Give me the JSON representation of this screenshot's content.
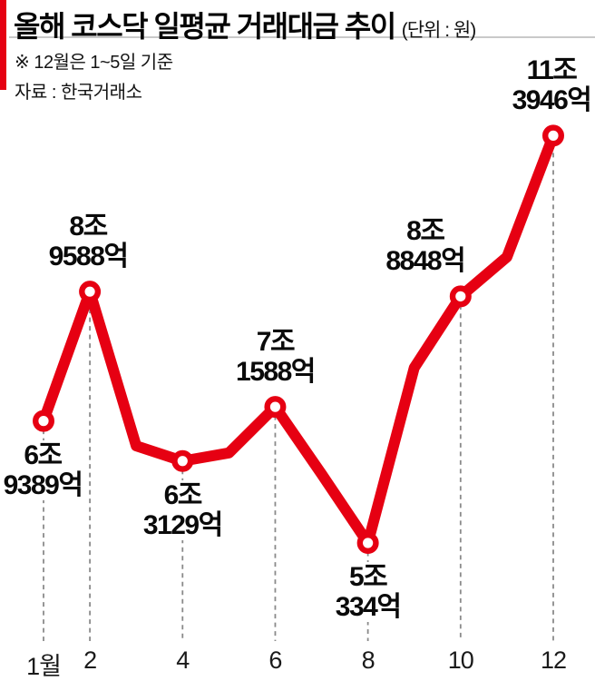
{
  "header": {
    "title": "올해 코스닥 일평균 거래대금 추이",
    "unit": "(단위 : 원)",
    "note_basis": "※ 12월은 1~5일 기준",
    "note_source": "자료 : 한국거래소"
  },
  "colors": {
    "accent_red": "#e60012",
    "dash_gray": "#8a8a8a",
    "text_black": "#0a0a0a"
  },
  "chart_data": {
    "type": "line",
    "title": "올해 코스닥 일평균 거래대금 추이",
    "unit": "원",
    "x_label": "월",
    "x": [
      1,
      2,
      3,
      4,
      5,
      6,
      7,
      8,
      9,
      10,
      11,
      12
    ],
    "values_eokwon": [
      69389,
      89588,
      65500,
      63129,
      64400,
      71588,
      61100,
      50334,
      77700,
      88848,
      95000,
      113946
    ],
    "estimated_months": [
      3,
      5,
      7,
      9,
      11
    ],
    "labeled_points": [
      {
        "month": 1,
        "value_eokwon": 69389,
        "label_lines": [
          "6조",
          "9389억"
        ],
        "placement": "below",
        "dx": -1
      },
      {
        "month": 2,
        "value_eokwon": 89588,
        "label_lines": [
          "8조",
          "9588억"
        ],
        "placement": "above",
        "dx": -2
      },
      {
        "month": 4,
        "value_eokwon": 63129,
        "label_lines": [
          "6조",
          "3129억"
        ],
        "placement": "below",
        "dx": 0
      },
      {
        "month": 6,
        "value_eokwon": 71588,
        "label_lines": [
          "7조",
          "1588억"
        ],
        "placement": "above",
        "dx": 0
      },
      {
        "month": 8,
        "value_eokwon": 50334,
        "label_lines": [
          "5조",
          "334억"
        ],
        "placement": "below",
        "dx": 0
      },
      {
        "month": 10,
        "value_eokwon": 88848,
        "label_lines": [
          "8조",
          "8848억"
        ],
        "placement": "above",
        "dx": -39
      },
      {
        "month": 12,
        "value_eokwon": 113946,
        "label_lines": [
          "11조",
          "3946억"
        ],
        "placement": "above",
        "dx": -2
      }
    ],
    "x_ticks": [
      {
        "month": 1,
        "label": "1월"
      },
      {
        "month": 2,
        "label": "2"
      },
      {
        "month": 4,
        "label": "4"
      },
      {
        "month": 6,
        "label": "6"
      },
      {
        "month": 8,
        "label": "8"
      },
      {
        "month": 10,
        "label": "10"
      },
      {
        "month": 12,
        "label": "12"
      }
    ],
    "ylim_eokwon": [
      45000,
      120000
    ],
    "legend": "none",
    "grid": "dashed vertical gridlines under labeled points only"
  }
}
